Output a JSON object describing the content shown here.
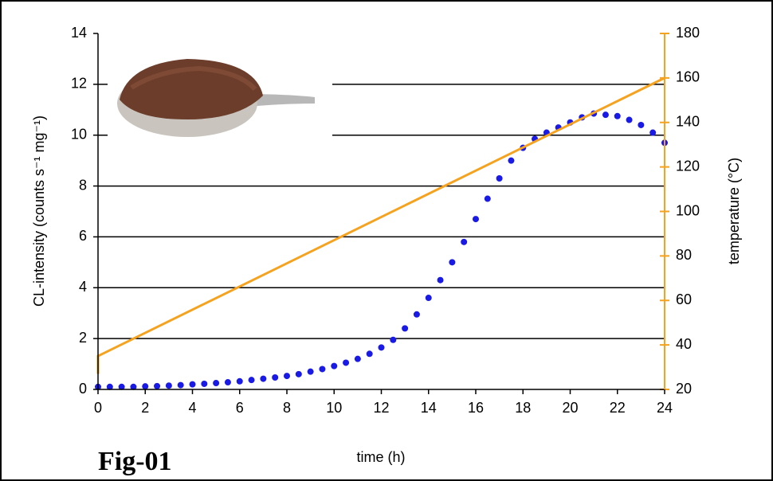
{
  "chart_data": {
    "type": "scatter",
    "x_label": "time (h)",
    "y_label": "CL-intensity (counts s⁻¹ mg⁻¹)",
    "y2_label": "temperature (°C)",
    "annotation": "Fig-01",
    "xlim": [
      0,
      24
    ],
    "xticks": [
      0,
      2,
      4,
      6,
      8,
      10,
      12,
      14,
      16,
      18,
      20,
      22,
      24
    ],
    "ylim": [
      0,
      14
    ],
    "yticks": [
      0,
      2,
      4,
      6,
      8,
      10,
      12,
      14
    ],
    "y2lim": [
      20,
      180
    ],
    "y2ticks": [
      20,
      40,
      60,
      80,
      100,
      120,
      140,
      160,
      180
    ],
    "grid": true,
    "series": [
      {
        "color": "#1a1ae6",
        "x": [
          0,
          0.5,
          1,
          1.5,
          2,
          2.5,
          3,
          3.5,
          4,
          4.5,
          5,
          5.5,
          6,
          6.5,
          7,
          7.5,
          8,
          8.5,
          9,
          9.5,
          10,
          10.5,
          11,
          11.5,
          12,
          12.5,
          13,
          13.5,
          14,
          14.5,
          15,
          15.5,
          16,
          16.5,
          17,
          17.5,
          18,
          18.5,
          19,
          19.5,
          20,
          20.5,
          21,
          21.5,
          22,
          22.5,
          23,
          23.5,
          24
        ],
        "values": [
          0.1,
          0.1,
          0.1,
          0.1,
          0.12,
          0.13,
          0.15,
          0.17,
          0.2,
          0.22,
          0.25,
          0.28,
          0.32,
          0.37,
          0.42,
          0.47,
          0.53,
          0.6,
          0.7,
          0.8,
          0.92,
          1.05,
          1.2,
          1.4,
          1.65,
          1.95,
          2.4,
          2.95,
          3.6,
          4.3,
          5.0,
          5.8,
          6.7,
          7.5,
          8.3,
          9.0,
          9.5,
          9.85,
          10.1,
          10.3,
          10.5,
          10.7,
          10.85,
          10.8,
          10.75,
          10.6,
          10.4,
          10.1,
          9.7
        ]
      },
      {
        "type": "line",
        "axis": "y2",
        "color": "#f5a21e",
        "x": [
          0,
          0,
          24
        ],
        "values": [
          27,
          35,
          160
        ]
      }
    ]
  }
}
